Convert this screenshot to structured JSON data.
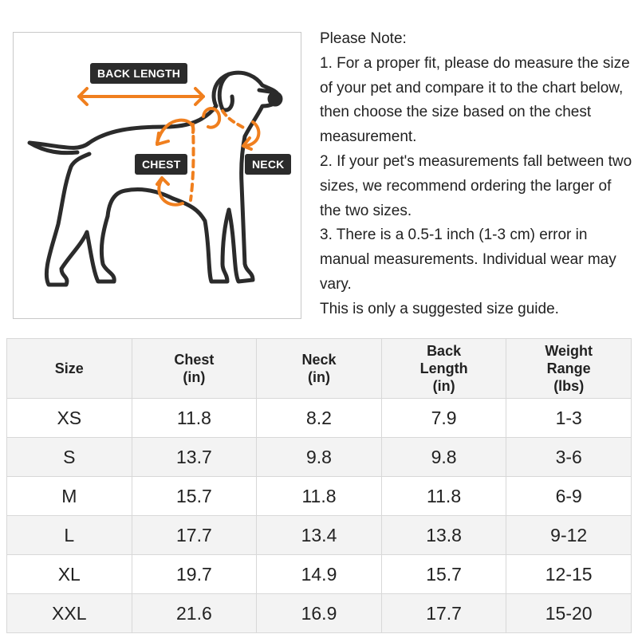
{
  "illustration": {
    "labels": {
      "back_length": "BACK LENGTH",
      "chest": "CHEST",
      "neck": "NECK"
    },
    "accent_color": "#f07f1e",
    "label_bg": "#2b2b2b"
  },
  "notes": [
    "Please Note:",
    "1. For a proper fit, please do measure the size of your pet and compare it to the chart below, then choose the size based on the chest measurement.",
    "2. If your pet's measurements fall between two sizes, we recommend ordering the larger of the two sizes.",
    "3. There is a 0.5-1 inch (1-3 cm) error in manual measurements. Individual wear may vary.",
    "This is only a suggested size guide."
  ],
  "table": {
    "headers": [
      [
        "Size"
      ],
      [
        "Chest",
        "(in)"
      ],
      [
        "Neck",
        "(in)"
      ],
      [
        "Back",
        "Length",
        "(in)"
      ],
      [
        "Weight",
        "Range",
        "(lbs)"
      ]
    ],
    "rows": [
      [
        "XS",
        "11.8",
        "8.2",
        "7.9",
        "1-3"
      ],
      [
        "S",
        "13.7",
        "9.8",
        "9.8",
        "3-6"
      ],
      [
        "M",
        "15.7",
        "11.8",
        "11.8",
        "6-9"
      ],
      [
        "L",
        "17.7",
        "13.4",
        "13.8",
        "9-12"
      ],
      [
        "XL",
        "19.7",
        "14.9",
        "15.7",
        "12-15"
      ],
      [
        "XXL",
        "21.6",
        "16.9",
        "17.7",
        "15-20"
      ]
    ]
  }
}
